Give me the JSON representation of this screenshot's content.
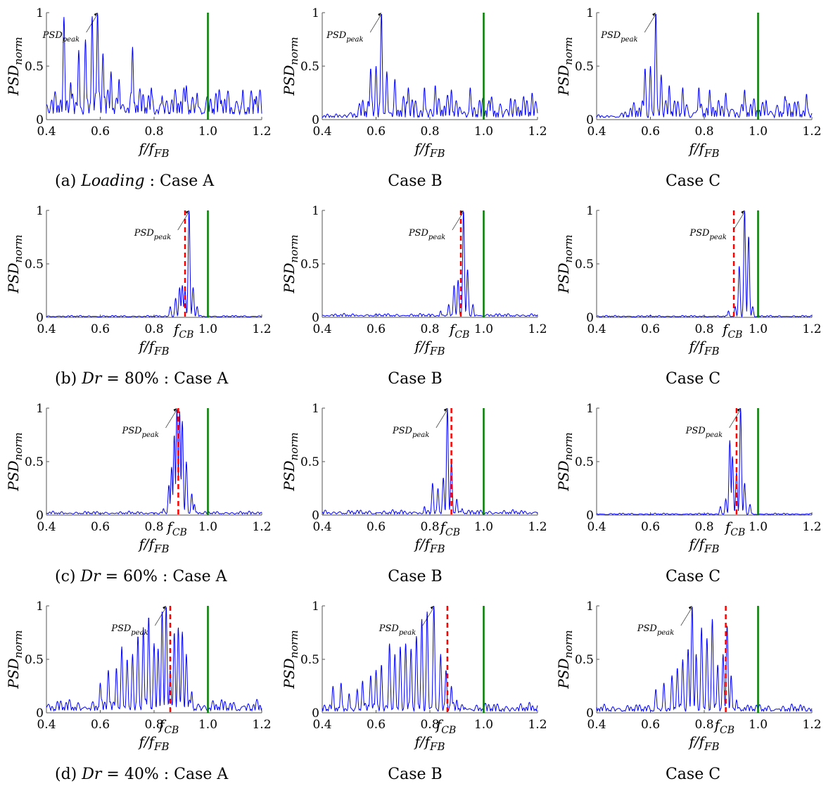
{
  "figure": {
    "colors": {
      "signal": "#0000ff",
      "reference_line": "#008000",
      "f_cb_line": "#ff0000",
      "axes": "#555555",
      "annotation_arrow": "#000000"
    },
    "ylabel_base": "PSD",
    "ylabel_sub": "norm",
    "xlabel_base": "f/f",
    "xlabel_sub": "FB",
    "annotation_base": "PSD",
    "annotation_sub": "peak",
    "fcb_base": "f",
    "fcb_sub": "CB",
    "captions": [
      {
        "prefix": "(a) ",
        "label": "Loading",
        "suffix": " : Case A"
      },
      {
        "prefix": "(b) ",
        "label": "Dr",
        "suffix": " = 80% : Case A"
      },
      {
        "prefix": "(c) ",
        "label": "Dr",
        "suffix": " = 60% : Case A"
      },
      {
        "prefix": "(d) ",
        "label": "Dr",
        "suffix": " = 40% : Case A"
      }
    ],
    "case_b": "Case B",
    "case_c": "Case C"
  },
  "chart_data": [
    {
      "type": "line",
      "panel": "(a) Case A",
      "xlim": [
        0.4,
        1.2
      ],
      "ylim": [
        0,
        1
      ],
      "xticks": [
        "0.4",
        "0.6",
        "0.8",
        "1.0",
        "1.2"
      ],
      "yticks": [
        "0",
        "0.5",
        "1"
      ],
      "reference_x": 1.0,
      "f_cb": null,
      "peak_x": 0.59,
      "peaks": [
        [
          0.465,
          0.96
        ],
        [
          0.49,
          0.35
        ],
        [
          0.52,
          0.65
        ],
        [
          0.545,
          0.75
        ],
        [
          0.57,
          0.97
        ],
        [
          0.59,
          1.0
        ],
        [
          0.61,
          0.62
        ],
        [
          0.64,
          0.45
        ],
        [
          0.67,
          0.38
        ],
        [
          0.72,
          0.68
        ],
        [
          0.79,
          0.3
        ],
        [
          0.83,
          0.22
        ],
        [
          0.92,
          0.32
        ],
        [
          0.96,
          0.25
        ],
        [
          1.0,
          0.2
        ],
        [
          1.05,
          0.18
        ],
        [
          1.13,
          0.28
        ],
        [
          1.18,
          0.22
        ]
      ],
      "noise": 0.18,
      "base": 0.05
    },
    {
      "type": "line",
      "panel": "(a) Case B",
      "xlim": [
        0.4,
        1.2
      ],
      "ylim": [
        0,
        1
      ],
      "xticks": [
        "0.4",
        "0.6",
        "0.8",
        "1.0",
        "1.2"
      ],
      "yticks": [
        "0",
        "0.5",
        "1"
      ],
      "reference_x": 1.0,
      "f_cb": null,
      "peak_x": 0.62,
      "peaks": [
        [
          0.58,
          0.48
        ],
        [
          0.6,
          0.5
        ],
        [
          0.62,
          1.0
        ],
        [
          0.64,
          0.45
        ],
        [
          0.67,
          0.38
        ],
        [
          0.72,
          0.3
        ],
        [
          0.78,
          0.3
        ],
        [
          0.82,
          0.32
        ],
        [
          0.88,
          0.28
        ],
        [
          0.95,
          0.3
        ],
        [
          1.02,
          0.18
        ],
        [
          1.1,
          0.2
        ],
        [
          1.18,
          0.25
        ]
      ],
      "noise": 0.15,
      "base": 0.02,
      "low_quiet": 0.55
    },
    {
      "type": "line",
      "panel": "(a) Case C",
      "xlim": [
        0.4,
        1.2
      ],
      "ylim": [
        0,
        1
      ],
      "xticks": [
        "0.4",
        "0.6",
        "0.8",
        "1.0",
        "1.2"
      ],
      "yticks": [
        "0",
        "0.5",
        "1"
      ],
      "reference_x": 1.0,
      "f_cb": null,
      "peak_x": 0.62,
      "peaks": [
        [
          0.58,
          0.48
        ],
        [
          0.6,
          0.5
        ],
        [
          0.62,
          1.0
        ],
        [
          0.64,
          0.42
        ],
        [
          0.67,
          0.32
        ],
        [
          0.72,
          0.3
        ],
        [
          0.78,
          0.3
        ],
        [
          0.82,
          0.28
        ],
        [
          0.88,
          0.25
        ],
        [
          0.95,
          0.28
        ],
        [
          1.03,
          0.18
        ],
        [
          1.1,
          0.22
        ],
        [
          1.18,
          0.24
        ]
      ],
      "noise": 0.13,
      "base": 0.02,
      "low_quiet": 0.55
    },
    {
      "type": "line",
      "panel": "(b) Case A",
      "xlim": [
        0.4,
        1.2
      ],
      "ylim": [
        0,
        1
      ],
      "xticks": [
        "0.4",
        "0.6",
        "0.8",
        "1.0",
        "1.2"
      ],
      "yticks": [
        "0",
        "0.5",
        "1"
      ],
      "reference_x": 1.0,
      "f_cb": 0.915,
      "peak_x": 0.93,
      "peaks": [
        [
          0.86,
          0.1
        ],
        [
          0.88,
          0.18
        ],
        [
          0.895,
          0.28
        ],
        [
          0.905,
          0.3
        ],
        [
          0.915,
          0.25
        ],
        [
          0.93,
          1.0
        ],
        [
          0.945,
          0.28
        ],
        [
          0.96,
          0.1
        ]
      ],
      "noise": 0.01,
      "base": 0.005
    },
    {
      "type": "line",
      "panel": "(b) Case B",
      "xlim": [
        0.4,
        1.2
      ],
      "ylim": [
        0,
        1
      ],
      "xticks": [
        "0.4",
        "0.6",
        "0.8",
        "1.0",
        "1.2"
      ],
      "yticks": [
        "0",
        "0.5",
        "1"
      ],
      "reference_x": 1.0,
      "f_cb": 0.915,
      "peak_x": 0.925,
      "peaks": [
        [
          0.84,
          0.06
        ],
        [
          0.87,
          0.12
        ],
        [
          0.89,
          0.3
        ],
        [
          0.905,
          0.35
        ],
        [
          0.925,
          1.0
        ],
        [
          0.94,
          0.45
        ],
        [
          0.96,
          0.12
        ]
      ],
      "noise": 0.02,
      "base": 0.01
    },
    {
      "type": "line",
      "panel": "(b) Case C",
      "xlim": [
        0.4,
        1.2
      ],
      "ylim": [
        0,
        1
      ],
      "xticks": [
        "0.4",
        "0.6",
        "0.8",
        "1.0",
        "1.2"
      ],
      "yticks": [
        "0",
        "0.5",
        "1"
      ],
      "reference_x": 1.0,
      "f_cb": 0.91,
      "peak_x": 0.95,
      "peaks": [
        [
          0.89,
          0.06
        ],
        [
          0.915,
          0.1
        ],
        [
          0.93,
          0.48
        ],
        [
          0.95,
          1.0
        ],
        [
          0.965,
          0.76
        ],
        [
          0.98,
          0.1
        ]
      ],
      "noise": 0.01,
      "base": 0.005
    },
    {
      "type": "line",
      "panel": "(c) Case A",
      "xlim": [
        0.4,
        1.2
      ],
      "ylim": [
        0,
        1
      ],
      "xticks": [
        "0.4",
        "0.6",
        "0.8",
        "1.0",
        "1.2"
      ],
      "yticks": [
        "0",
        "0.5",
        "1"
      ],
      "reference_x": 1.0,
      "f_cb": 0.89,
      "peak_x": 0.885,
      "peaks": [
        [
          0.835,
          0.06
        ],
        [
          0.855,
          0.28
        ],
        [
          0.865,
          0.45
        ],
        [
          0.875,
          0.75
        ],
        [
          0.885,
          1.0
        ],
        [
          0.895,
          0.97
        ],
        [
          0.905,
          0.88
        ],
        [
          0.92,
          0.5
        ],
        [
          0.94,
          0.2
        ],
        [
          0.95,
          0.1
        ]
      ],
      "noise": 0.02,
      "base": 0.01
    },
    {
      "type": "line",
      "panel": "(c) Case B",
      "xlim": [
        0.4,
        1.2
      ],
      "ylim": [
        0,
        1
      ],
      "xticks": [
        "0.4",
        "0.6",
        "0.8",
        "1.0",
        "1.2"
      ],
      "yticks": [
        "0",
        "0.5",
        "1"
      ],
      "reference_x": 1.0,
      "f_cb": 0.88,
      "peak_x": 0.865,
      "peaks": [
        [
          0.78,
          0.08
        ],
        [
          0.81,
          0.3
        ],
        [
          0.83,
          0.25
        ],
        [
          0.85,
          0.35
        ],
        [
          0.865,
          1.0
        ],
        [
          0.88,
          0.5
        ],
        [
          0.9,
          0.15
        ],
        [
          0.92,
          0.06
        ]
      ],
      "noise": 0.03,
      "base": 0.01
    },
    {
      "type": "line",
      "panel": "(c) Case C",
      "xlim": [
        0.4,
        1.2
      ],
      "ylim": [
        0,
        1
      ],
      "xticks": [
        "0.4",
        "0.6",
        "0.8",
        "1.0",
        "1.2"
      ],
      "yticks": [
        "0",
        "0.5",
        "1"
      ],
      "reference_x": 1.0,
      "f_cb": 0.92,
      "peak_x": 0.935,
      "peaks": [
        [
          0.86,
          0.08
        ],
        [
          0.88,
          0.15
        ],
        [
          0.895,
          0.7
        ],
        [
          0.905,
          0.55
        ],
        [
          0.92,
          0.4
        ],
        [
          0.935,
          1.0
        ],
        [
          0.95,
          0.3
        ],
        [
          0.97,
          0.1
        ]
      ],
      "noise": 0.01,
      "base": 0.005
    },
    {
      "type": "line",
      "panel": "(d) Case A",
      "xlim": [
        0.4,
        1.2
      ],
      "ylim": [
        0,
        1
      ],
      "xticks": [
        "0.4",
        "0.6",
        "0.8",
        "1.0",
        "1.2"
      ],
      "yticks": [
        "0",
        "0.5",
        "1"
      ],
      "reference_x": 1.0,
      "f_cb": 0.86,
      "peak_x": 0.845,
      "peaks": [
        [
          0.6,
          0.28
        ],
        [
          0.63,
          0.4
        ],
        [
          0.66,
          0.42
        ],
        [
          0.68,
          0.62
        ],
        [
          0.7,
          0.5
        ],
        [
          0.72,
          0.55
        ],
        [
          0.74,
          0.72
        ],
        [
          0.76,
          0.8
        ],
        [
          0.78,
          0.9
        ],
        [
          0.8,
          0.65
        ],
        [
          0.815,
          0.6
        ],
        [
          0.83,
          0.95
        ],
        [
          0.845,
          1.0
        ],
        [
          0.86,
          0.4
        ],
        [
          0.875,
          0.75
        ],
        [
          0.89,
          0.8
        ],
        [
          0.905,
          0.76
        ],
        [
          0.92,
          0.55
        ],
        [
          0.94,
          0.2
        ],
        [
          0.97,
          0.06
        ]
      ],
      "noise": 0.08,
      "base": 0.02
    },
    {
      "type": "line",
      "panel": "(d) Case B",
      "xlim": [
        0.4,
        1.2
      ],
      "ylim": [
        0,
        1
      ],
      "xticks": [
        "0.4",
        "0.6",
        "0.8",
        "1.0",
        "1.2"
      ],
      "yticks": [
        "0",
        "0.5",
        "1"
      ],
      "reference_x": 1.0,
      "f_cb": 0.865,
      "peak_x": 0.815,
      "peaks": [
        [
          0.44,
          0.25
        ],
        [
          0.47,
          0.28
        ],
        [
          0.5,
          0.18
        ],
        [
          0.53,
          0.22
        ],
        [
          0.55,
          0.3
        ],
        [
          0.58,
          0.35
        ],
        [
          0.6,
          0.4
        ],
        [
          0.62,
          0.45
        ],
        [
          0.65,
          0.65
        ],
        [
          0.67,
          0.55
        ],
        [
          0.69,
          0.62
        ],
        [
          0.71,
          0.65
        ],
        [
          0.73,
          0.6
        ],
        [
          0.75,
          0.72
        ],
        [
          0.77,
          0.88
        ],
        [
          0.79,
          0.95
        ],
        [
          0.815,
          1.0
        ],
        [
          0.84,
          0.55
        ],
        [
          0.86,
          0.4
        ],
        [
          0.88,
          0.25
        ],
        [
          0.9,
          0.12
        ],
        [
          0.93,
          0.05
        ]
      ],
      "noise": 0.06,
      "base": 0.015
    },
    {
      "type": "line",
      "panel": "(d) Case C",
      "xlim": [
        0.4,
        1.2
      ],
      "ylim": [
        0,
        1
      ],
      "xticks": [
        "0.4",
        "0.6",
        "0.8",
        "1.0",
        "1.2"
      ],
      "yticks": [
        "0",
        "0.5",
        "1"
      ],
      "reference_x": 1.0,
      "f_cb": 0.88,
      "peak_x": 0.755,
      "peaks": [
        [
          0.62,
          0.22
        ],
        [
          0.65,
          0.28
        ],
        [
          0.68,
          0.35
        ],
        [
          0.7,
          0.42
        ],
        [
          0.72,
          0.5
        ],
        [
          0.74,
          0.6
        ],
        [
          0.755,
          1.0
        ],
        [
          0.77,
          0.55
        ],
        [
          0.79,
          0.8
        ],
        [
          0.81,
          0.7
        ],
        [
          0.83,
          0.88
        ],
        [
          0.85,
          0.45
        ],
        [
          0.87,
          0.55
        ],
        [
          0.885,
          0.82
        ],
        [
          0.9,
          0.35
        ],
        [
          0.92,
          0.12
        ],
        [
          0.95,
          0.05
        ]
      ],
      "noise": 0.05,
      "base": 0.015
    }
  ]
}
